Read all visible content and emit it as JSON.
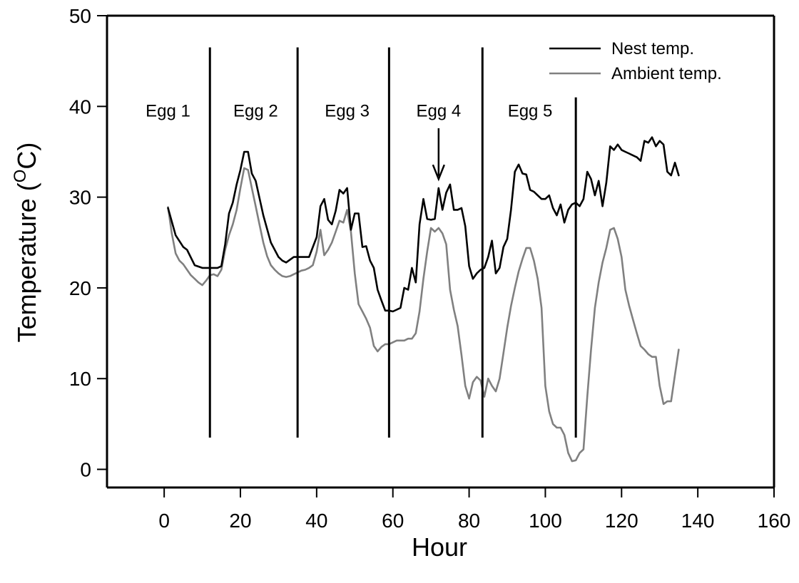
{
  "chart_data": {
    "type": "line",
    "title": "",
    "xlabel": "Hour",
    "ylabel": {
      "main": "Temperature (",
      "sup": "O",
      "unit": "C)"
    },
    "xlim": [
      -15,
      160
    ],
    "ylim": [
      -2,
      50
    ],
    "x_ticks": [
      0,
      20,
      40,
      60,
      80,
      100,
      120,
      140,
      160
    ],
    "y_ticks": [
      0,
      10,
      20,
      30,
      40,
      50
    ],
    "grid": false,
    "legend_position": "top-right",
    "colors": {
      "nest": "#000000",
      "ambient": "#808080",
      "axis": "#000000"
    },
    "series": [
      {
        "name": "Nest temp.",
        "x": [
          1,
          3,
          5,
          6,
          8,
          10,
          12,
          14,
          15,
          16,
          17,
          18,
          19,
          20,
          21,
          22,
          23,
          24,
          26,
          28,
          30,
          31,
          32,
          34,
          36,
          38,
          40,
          41,
          42,
          43,
          44,
          45,
          46,
          47,
          48,
          49,
          50,
          51,
          52,
          53,
          54,
          55,
          56,
          57,
          58,
          59,
          60,
          61,
          62,
          63,
          64,
          65,
          66,
          67,
          68,
          69,
          70,
          71,
          72,
          73,
          74,
          75,
          76,
          77,
          78,
          79,
          80,
          81,
          82,
          83,
          84,
          85,
          86,
          87,
          88,
          89,
          90,
          91,
          92,
          93,
          94,
          95,
          96,
          97,
          98,
          99,
          100,
          101,
          102,
          103,
          104,
          105,
          106,
          107,
          108,
          109,
          110,
          111,
          112,
          113,
          114,
          115,
          116,
          117,
          118,
          119,
          120,
          121,
          122,
          123,
          124,
          125,
          126,
          127,
          128,
          129,
          130,
          131,
          132,
          133,
          134,
          135
        ],
        "values": [
          28.8,
          25.8,
          24.5,
          24.2,
          22.5,
          22.2,
          22.2,
          22.2,
          22.4,
          24.8,
          28.2,
          29.4,
          31.4,
          33.0,
          35.0,
          35.0,
          32.6,
          31.8,
          28.0,
          25.0,
          23.4,
          23.0,
          22.8,
          23.4,
          23.4,
          23.4,
          25.6,
          29.0,
          29.8,
          27.5,
          27.0,
          28.5,
          30.8,
          30.4,
          31.0,
          26.4,
          28.2,
          28.2,
          24.5,
          24.6,
          23.0,
          22.2,
          19.8,
          18.6,
          17.5,
          17.5,
          17.4,
          17.6,
          17.8,
          20.0,
          19.8,
          22.2,
          20.6,
          27.0,
          29.8,
          27.6,
          27.5,
          27.6,
          31.0,
          28.6,
          30.5,
          31.4,
          28.6,
          28.6,
          28.8,
          26.8,
          22.4,
          21.0,
          21.6,
          22.0,
          22.2,
          23.4,
          25.2,
          21.6,
          22.2,
          24.5,
          25.4,
          28.6,
          32.8,
          33.6,
          32.6,
          32.5,
          30.8,
          30.6,
          30.2,
          29.8,
          29.8,
          30.2,
          28.8,
          28.0,
          29.2,
          27.2,
          28.6,
          29.2,
          29.4,
          29.0,
          29.8,
          32.8,
          32.0,
          30.2,
          31.8,
          29.0,
          31.6,
          35.6,
          35.2,
          35.8,
          35.2,
          35.0,
          34.8,
          34.6,
          34.4,
          34.0,
          36.2,
          36.0,
          36.6,
          35.6,
          36.2,
          35.8,
          32.8,
          32.4,
          33.8,
          32.4
        ]
      },
      {
        "name": "Ambient temp.",
        "x": [
          1,
          2,
          3,
          4,
          5,
          6,
          7,
          8,
          9,
          10,
          11,
          12,
          13,
          14,
          15,
          16,
          17,
          18,
          19,
          20,
          21,
          22,
          23,
          24,
          25,
          26,
          27,
          28,
          29,
          30,
          31,
          32,
          33,
          34,
          35,
          36,
          37,
          38,
          39,
          40,
          41,
          42,
          43,
          44,
          45,
          46,
          47,
          48,
          49,
          50,
          51,
          52,
          53,
          54,
          55,
          56,
          57,
          58,
          59,
          60,
          61,
          62,
          63,
          64,
          65,
          66,
          67,
          68,
          69,
          70,
          71,
          72,
          73,
          74,
          75,
          76,
          77,
          78,
          79,
          80,
          81,
          82,
          83,
          84,
          85,
          86,
          87,
          88,
          89,
          90,
          91,
          92,
          93,
          94,
          95,
          96,
          97,
          98,
          99,
          100,
          101,
          102,
          103,
          104,
          105,
          106,
          107,
          108,
          109,
          110,
          111,
          112,
          113,
          114,
          115,
          116,
          117,
          118,
          119,
          120,
          121,
          122,
          123,
          124,
          125,
          126,
          127,
          128,
          129,
          130,
          131,
          132,
          133,
          134,
          135
        ],
        "values": [
          28.9,
          26.0,
          23.8,
          23.0,
          22.6,
          22.0,
          21.4,
          21.0,
          20.6,
          20.3,
          20.8,
          21.4,
          21.5,
          21.3,
          22.0,
          24.2,
          25.8,
          27.0,
          28.6,
          31.0,
          33.2,
          33.0,
          31.0,
          29.0,
          27.0,
          25.0,
          23.5,
          22.5,
          22.0,
          21.6,
          21.3,
          21.2,
          21.3,
          21.5,
          21.7,
          21.9,
          22.0,
          22.2,
          22.5,
          24.0,
          26.4,
          23.6,
          24.2,
          25.0,
          26.2,
          27.4,
          27.2,
          28.6,
          26.2,
          21.6,
          18.2,
          17.4,
          16.6,
          15.6,
          13.6,
          13.0,
          13.5,
          13.8,
          13.8,
          14.0,
          14.2,
          14.2,
          14.2,
          14.4,
          14.4,
          15.0,
          17.4,
          21.0,
          24.0,
          26.6,
          26.2,
          26.6,
          26.0,
          24.8,
          19.8,
          17.6,
          15.8,
          12.6,
          9.2,
          7.8,
          9.6,
          10.2,
          9.8,
          8.0,
          10.0,
          9.2,
          8.6,
          10.0,
          12.8,
          15.6,
          18.0,
          20.0,
          21.8,
          23.2,
          24.4,
          24.4,
          23.0,
          21.0,
          17.8,
          9.2,
          6.4,
          5.0,
          4.6,
          4.6,
          3.8,
          1.8,
          0.9,
          1.0,
          1.8,
          2.2,
          8.0,
          13.2,
          17.8,
          20.6,
          22.8,
          24.4,
          26.4,
          26.6,
          25.4,
          23.4,
          19.8,
          18.0,
          16.5,
          15.0,
          13.6,
          13.2,
          12.7,
          12.4,
          12.4,
          9.2,
          7.2,
          7.5,
          7.5,
          10.4,
          13.2
        ]
      }
    ],
    "egg_boundaries": [
      {
        "x": 12,
        "top": 46.5,
        "bottom": 3.5
      },
      {
        "x": 35,
        "top": 46.5,
        "bottom": 3.5
      },
      {
        "x": 59,
        "top": 46.5,
        "bottom": 3.5
      },
      {
        "x": 83.5,
        "top": 46.5,
        "bottom": 3.5
      },
      {
        "x": 108,
        "top": 41.0,
        "bottom": 3.5
      }
    ],
    "annotations": [
      {
        "text": "Egg 1",
        "x": 1,
        "y": 38.9
      },
      {
        "text": "Egg 2",
        "x": 24,
        "y": 38.9
      },
      {
        "text": "Egg 3",
        "x": 48,
        "y": 38.9
      },
      {
        "text": "Egg 4",
        "x": 72,
        "y": 38.9
      },
      {
        "text": "Egg 5",
        "x": 96,
        "y": 38.9
      }
    ],
    "arrow": {
      "x": 72,
      "from_y": 37.6,
      "to_y": 32.0
    }
  }
}
